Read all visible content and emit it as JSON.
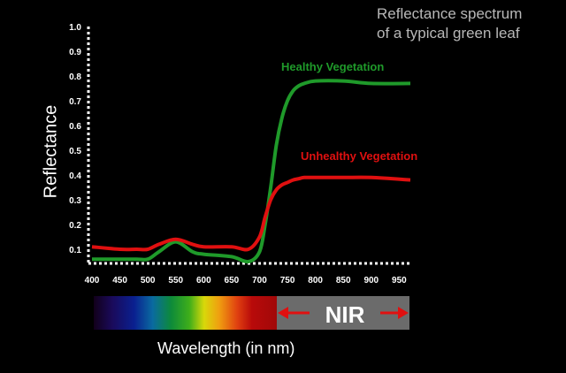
{
  "title_lines": [
    "Reflectance spectrum",
    "of a typical green leaf"
  ],
  "colors": {
    "background": "#000000",
    "healthy": "#1f9a2a",
    "unhealthy": "#e01010",
    "axis": "#ffffff",
    "nir_band": "#6b6b6b"
  },
  "chart_data": {
    "type": "line",
    "xlabel": "Wavelength (in nm)",
    "ylabel": "Reflectance",
    "xlim": [
      400,
      970
    ],
    "ylim": [
      0.05,
      1.0
    ],
    "x_ticks": [
      400,
      450,
      500,
      550,
      600,
      650,
      700,
      750,
      800,
      850,
      900,
      950
    ],
    "y_ticks": [
      0.1,
      0.2,
      0.3,
      0.4,
      0.5,
      0.6,
      0.7,
      0.8,
      0.9,
      1.0
    ],
    "series": [
      {
        "name": "Healthy Vegetation",
        "color": "#1f9a2a",
        "x": [
          400,
          450,
          480,
          500,
          520,
          550,
          580,
          600,
          650,
          680,
          700,
          710,
          720,
          730,
          740,
          750,
          760,
          770,
          780,
          800,
          850,
          900,
          970
        ],
        "y": [
          0.06,
          0.06,
          0.06,
          0.06,
          0.09,
          0.13,
          0.09,
          0.08,
          0.07,
          0.05,
          0.09,
          0.2,
          0.35,
          0.52,
          0.63,
          0.7,
          0.74,
          0.76,
          0.77,
          0.78,
          0.78,
          0.77,
          0.77
        ]
      },
      {
        "name": "Unhealthy Vegetation",
        "color": "#e01010",
        "x": [
          400,
          450,
          480,
          500,
          520,
          550,
          580,
          600,
          650,
          680,
          700,
          710,
          720,
          730,
          740,
          750,
          760,
          770,
          780,
          800,
          850,
          900,
          970
        ],
        "y": [
          0.11,
          0.1,
          0.1,
          0.1,
          0.12,
          0.14,
          0.12,
          0.11,
          0.11,
          0.1,
          0.15,
          0.23,
          0.3,
          0.34,
          0.36,
          0.37,
          0.38,
          0.385,
          0.39,
          0.39,
          0.39,
          0.39,
          0.38
        ]
      }
    ],
    "annotations": [
      "Healthy Vegetation",
      "Unhealthy Vegetation"
    ],
    "spectrum_band": {
      "label": "NIR"
    }
  }
}
